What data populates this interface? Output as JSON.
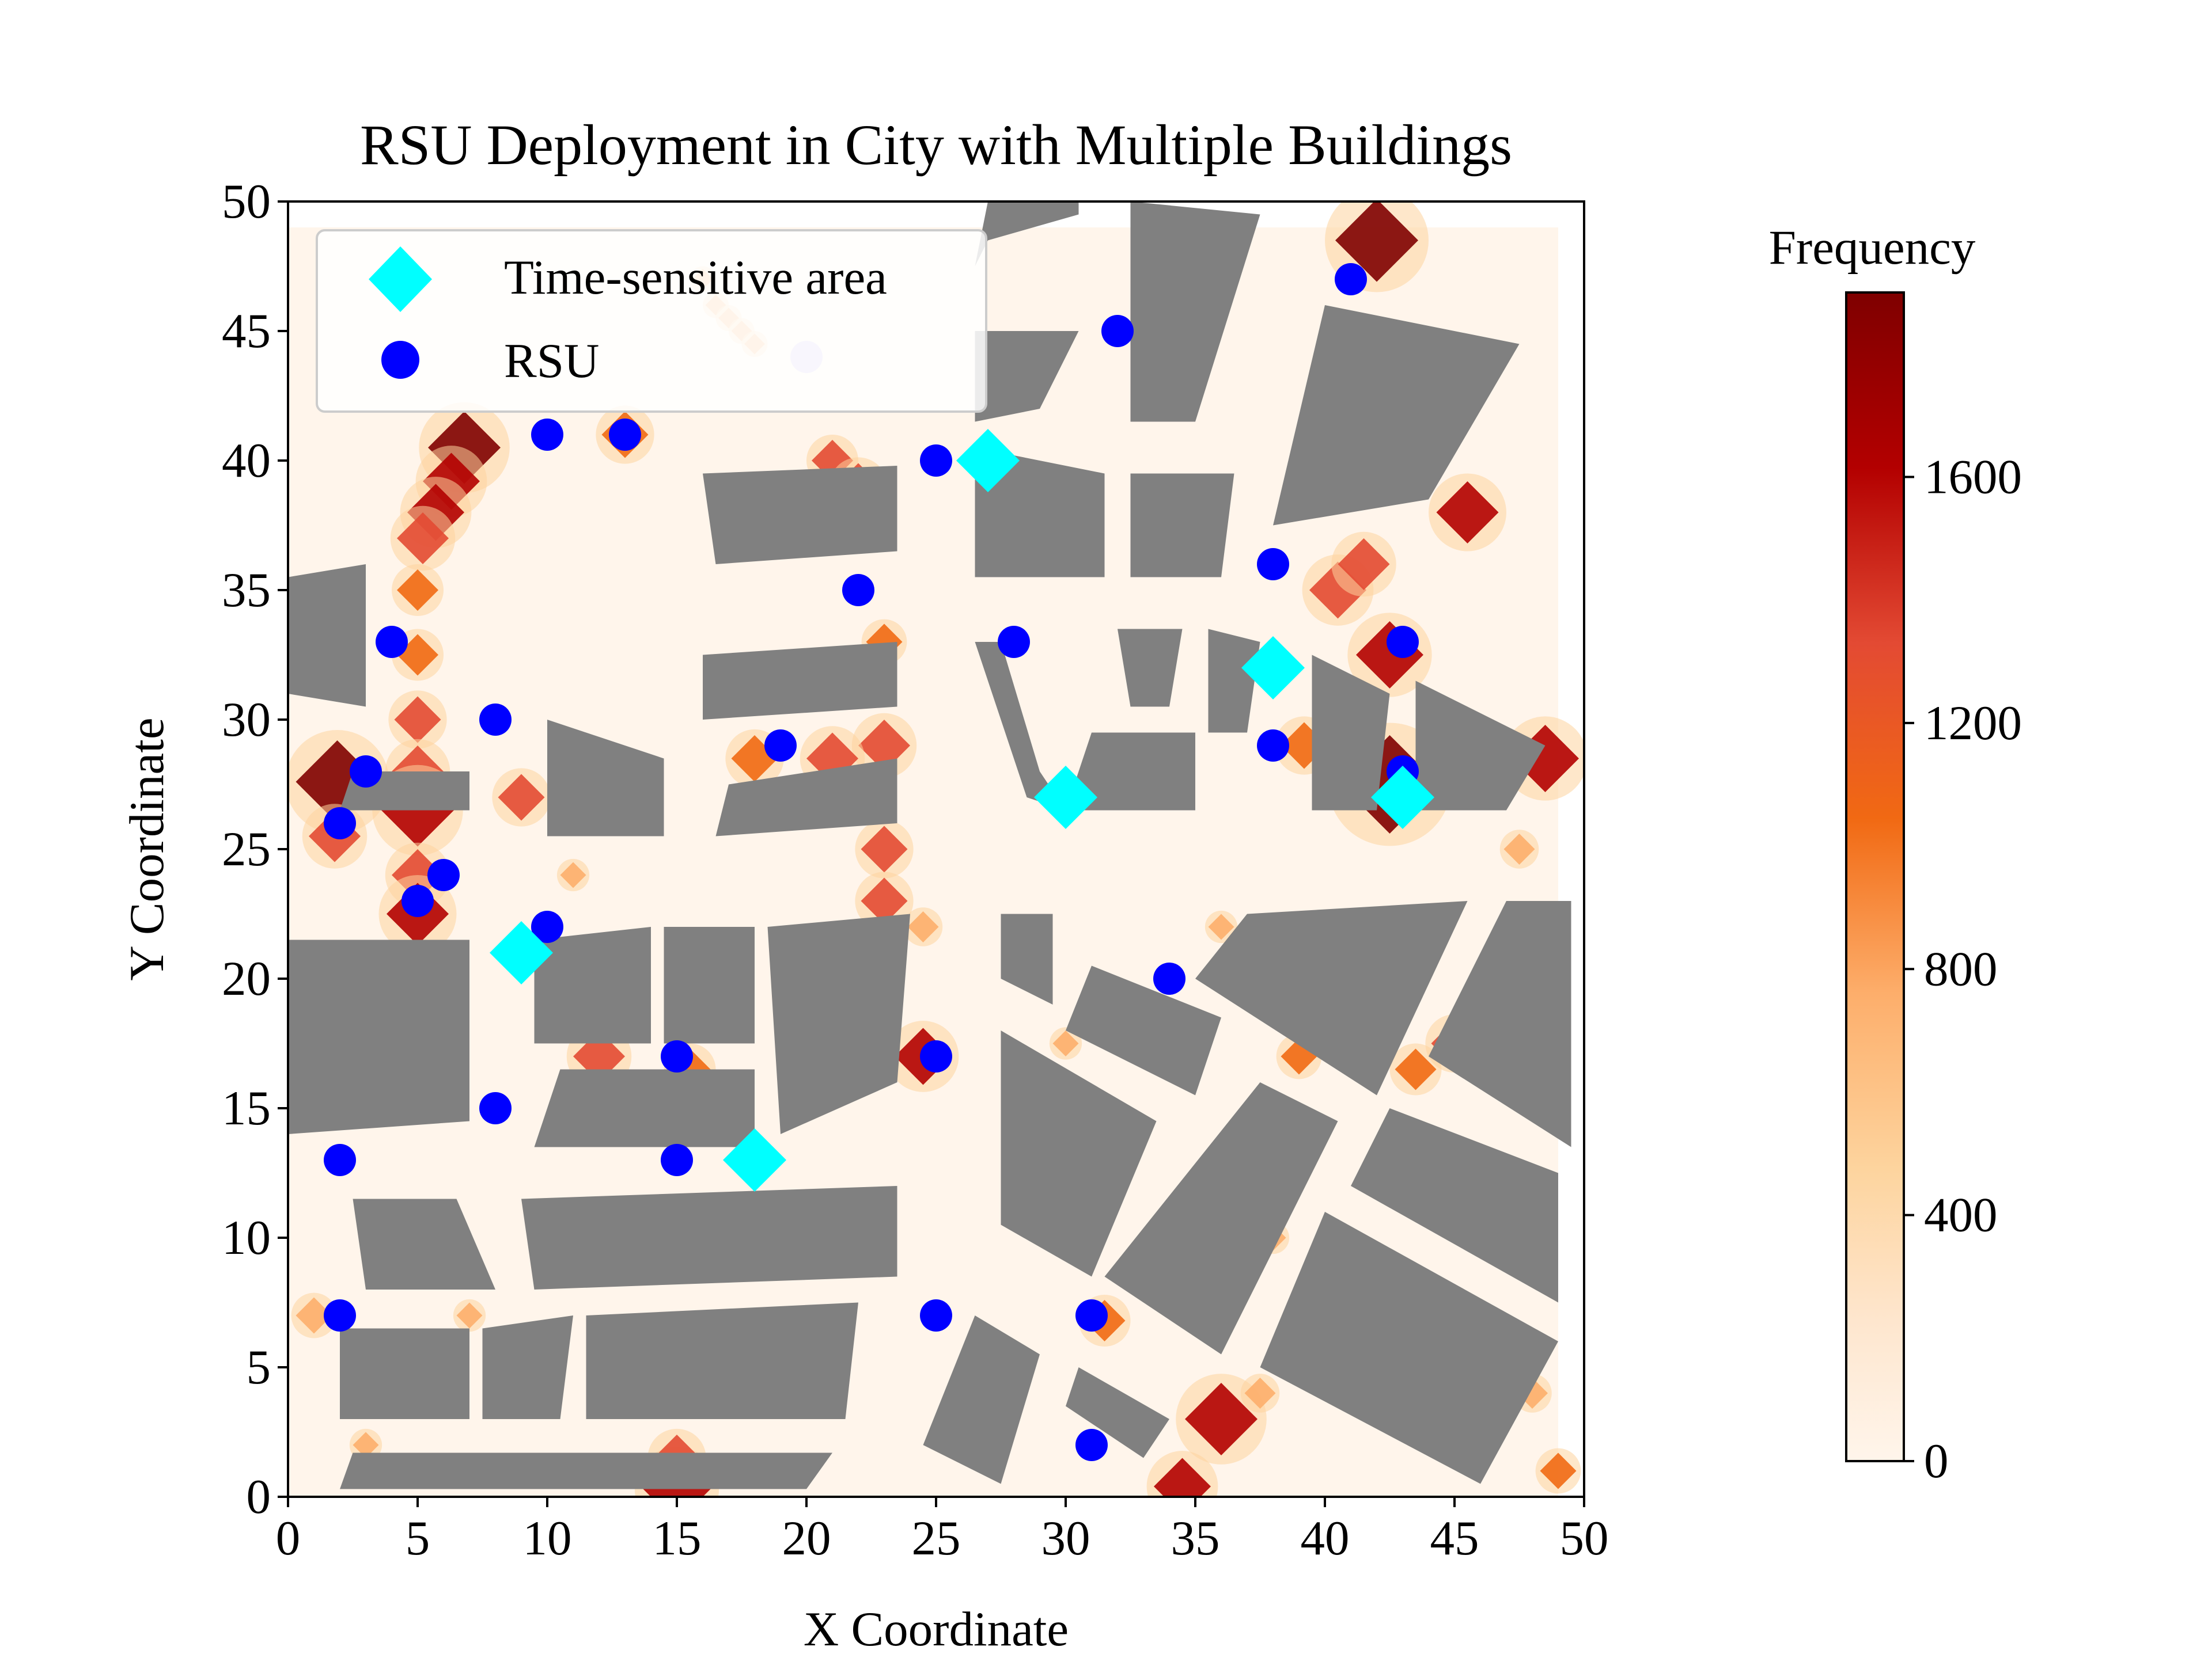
{
  "chart_data": {
    "type": "scatter",
    "title": "RSU Deployment in City with Multiple Buildings",
    "xlabel": "X Coordinate",
    "ylabel": "Y Coordinate",
    "xlim": [
      0,
      50
    ],
    "ylim": [
      0,
      50
    ],
    "xticks": [
      0,
      5,
      10,
      15,
      20,
      25,
      30,
      35,
      40,
      45,
      50
    ],
    "yticks": [
      0,
      5,
      10,
      15,
      20,
      25,
      30,
      35,
      40,
      45,
      50
    ],
    "grid": false,
    "legend_placement": "top-left",
    "colors": {
      "rsu": "#0000ff",
      "time_sensitive": "#00ffff",
      "building": "#808080",
      "heat_background": "#fff5eb",
      "heat_low": "#fdd49e",
      "heat_mid": "#f16913",
      "heat_high": "#b30000",
      "heat_max": "#7f0000"
    },
    "series": [
      {
        "name": "Time-sensitive area",
        "marker": "diamond",
        "points": [
          [
            27,
            40
          ],
          [
            38,
            32
          ],
          [
            30,
            27
          ],
          [
            43,
            27
          ],
          [
            9,
            21
          ],
          [
            18,
            13
          ]
        ]
      },
      {
        "name": "RSU",
        "marker": "circle",
        "points": [
          [
            41,
            47
          ],
          [
            32,
            45
          ],
          [
            20,
            44
          ],
          [
            10,
            41
          ],
          [
            13,
            41
          ],
          [
            25,
            40
          ],
          [
            38,
            36
          ],
          [
            22,
            35
          ],
          [
            4,
            33
          ],
          [
            28,
            33
          ],
          [
            43,
            33
          ],
          [
            8,
            30
          ],
          [
            19,
            29
          ],
          [
            38,
            29
          ],
          [
            3,
            28
          ],
          [
            43,
            28
          ],
          [
            2,
            26
          ],
          [
            6,
            24
          ],
          [
            5,
            23
          ],
          [
            10,
            22
          ],
          [
            34,
            20
          ],
          [
            15,
            17
          ],
          [
            25,
            17
          ],
          [
            8,
            15
          ],
          [
            2,
            13
          ],
          [
            15,
            13
          ],
          [
            2,
            7
          ],
          [
            25,
            7
          ],
          [
            31,
            7
          ],
          [
            31,
            2
          ]
        ]
      }
    ],
    "buildings": [
      [
        [
          27,
          48.5
        ],
        [
          30.5,
          49.5
        ],
        [
          30.5,
          50
        ],
        [
          27,
          50
        ],
        [
          26.5,
          47.5
        ]
      ],
      [
        [
          32.5,
          50
        ],
        [
          37.5,
          49.5
        ],
        [
          35,
          41.5
        ],
        [
          32.5,
          41.5
        ]
      ],
      [
        [
          40,
          46
        ],
        [
          47.5,
          44.5
        ],
        [
          44,
          38.5
        ],
        [
          38,
          37.5
        ]
      ],
      [
        [
          26.5,
          45
        ],
        [
          30.5,
          45
        ],
        [
          29,
          42
        ],
        [
          26.5,
          41.5
        ]
      ],
      [
        [
          16,
          39.5
        ],
        [
          23.5,
          39.8
        ],
        [
          23.5,
          36.5
        ],
        [
          16.5,
          36
        ]
      ],
      [
        [
          26.5,
          40.5
        ],
        [
          31.5,
          39.5
        ],
        [
          31.5,
          35.5
        ],
        [
          26.5,
          35.5
        ]
      ],
      [
        [
          32.5,
          39.5
        ],
        [
          36.5,
          39.5
        ],
        [
          36,
          35.5
        ],
        [
          32.5,
          35.5
        ]
      ],
      [
        [
          0,
          35.5
        ],
        [
          3,
          36
        ],
        [
          3,
          30.5
        ],
        [
          0,
          31
        ]
      ],
      [
        [
          16,
          32.5
        ],
        [
          23.5,
          33
        ],
        [
          23.5,
          30.5
        ],
        [
          16,
          30
        ]
      ],
      [
        [
          26.5,
          33
        ],
        [
          27.5,
          33
        ],
        [
          29,
          28
        ],
        [
          30,
          26.5
        ],
        [
          28.5,
          27
        ]
      ],
      [
        [
          32,
          33.5
        ],
        [
          34.5,
          33.5
        ],
        [
          34,
          30.5
        ],
        [
          32.5,
          30.5
        ]
      ],
      [
        [
          35.5,
          33.5
        ],
        [
          37.5,
          33
        ],
        [
          37,
          29.5
        ],
        [
          35.5,
          29.5
        ]
      ],
      [
        [
          39.5,
          32.5
        ],
        [
          42.5,
          31
        ],
        [
          42,
          26.5
        ],
        [
          39.5,
          26.5
        ]
      ],
      [
        [
          43.5,
          31.5
        ],
        [
          48.5,
          29
        ],
        [
          47,
          26.5
        ],
        [
          43.5,
          26.5
        ]
      ],
      [
        [
          31,
          29.5
        ],
        [
          35,
          29.5
        ],
        [
          35,
          26.5
        ],
        [
          30,
          26.5
        ]
      ],
      [
        [
          10,
          30
        ],
        [
          14.5,
          28.5
        ],
        [
          14.5,
          25.5
        ],
        [
          10,
          25.5
        ]
      ],
      [
        [
          17,
          27.5
        ],
        [
          23.5,
          28.5
        ],
        [
          23.5,
          26
        ],
        [
          16.5,
          25.5
        ]
      ],
      [
        [
          2.5,
          28
        ],
        [
          7,
          28
        ],
        [
          7,
          26.5
        ],
        [
          2,
          26.5
        ]
      ],
      [
        [
          0,
          21.5
        ],
        [
          7,
          21.5
        ],
        [
          7,
          14.5
        ],
        [
          0,
          14
        ]
      ],
      [
        [
          9.5,
          21.5
        ],
        [
          14,
          22
        ],
        [
          14,
          17.5
        ],
        [
          9.5,
          17.5
        ]
      ],
      [
        [
          14.5,
          22
        ],
        [
          18,
          22
        ],
        [
          18,
          17.5
        ],
        [
          14.5,
          17.5
        ]
      ],
      [
        [
          18.5,
          22
        ],
        [
          24,
          22.5
        ],
        [
          23.5,
          16
        ],
        [
          19,
          14
        ]
      ],
      [
        [
          27.5,
          22.5
        ],
        [
          29.5,
          22.5
        ],
        [
          29.5,
          19
        ],
        [
          27.5,
          20
        ]
      ],
      [
        [
          31,
          20.5
        ],
        [
          36,
          18.5
        ],
        [
          35,
          15.5
        ],
        [
          30,
          18
        ]
      ],
      [
        [
          37,
          22.5
        ],
        [
          45.5,
          23
        ],
        [
          42,
          15.5
        ],
        [
          35,
          20
        ]
      ],
      [
        [
          47,
          23
        ],
        [
          49.5,
          23
        ],
        [
          49.5,
          13.5
        ],
        [
          44,
          17
        ]
      ],
      [
        [
          10.5,
          16.5
        ],
        [
          18,
          16.5
        ],
        [
          18,
          13.5
        ],
        [
          9.5,
          13.5
        ]
      ],
      [
        [
          27.5,
          18
        ],
        [
          33.5,
          14.5
        ],
        [
          31,
          8.5
        ],
        [
          27.5,
          10.5
        ]
      ],
      [
        [
          37.5,
          16
        ],
        [
          40.5,
          14.5
        ],
        [
          36,
          5.5
        ],
        [
          31.5,
          8.5
        ]
      ],
      [
        [
          42.5,
          15
        ],
        [
          49,
          12.5
        ],
        [
          49,
          7.5
        ],
        [
          41,
          12
        ]
      ],
      [
        [
          2.5,
          11.5
        ],
        [
          6.5,
          11.5
        ],
        [
          8,
          8
        ],
        [
          3,
          8
        ]
      ],
      [
        [
          9,
          11.5
        ],
        [
          23.5,
          12
        ],
        [
          23.5,
          8.5
        ],
        [
          9.5,
          8
        ]
      ],
      [
        [
          40,
          11
        ],
        [
          49,
          6
        ],
        [
          46,
          0.5
        ],
        [
          37.5,
          5
        ]
      ],
      [
        [
          2,
          6.5
        ],
        [
          7,
          6.5
        ],
        [
          7,
          3
        ],
        [
          2,
          3
        ]
      ],
      [
        [
          7.5,
          6.5
        ],
        [
          11,
          7
        ],
        [
          10.5,
          3
        ],
        [
          7.5,
          3
        ]
      ],
      [
        [
          11.5,
          7
        ],
        [
          22,
          7.5
        ],
        [
          21.5,
          3
        ],
        [
          11.5,
          3
        ]
      ],
      [
        [
          26.5,
          7
        ],
        [
          29,
          5.5
        ],
        [
          27.5,
          0.5
        ],
        [
          24.5,
          2
        ]
      ],
      [
        [
          30.5,
          5
        ],
        [
          34,
          3
        ],
        [
          33,
          1.5
        ],
        [
          30,
          3.5
        ]
      ],
      [
        [
          2.5,
          1.7
        ],
        [
          21,
          1.7
        ],
        [
          20,
          0.3
        ],
        [
          2,
          0.3
        ]
      ]
    ],
    "hotspots": [
      [
        42,
        48.5,
        1.6,
        0.9
      ],
      [
        6.8,
        40.5,
        1.4,
        0.9
      ],
      [
        6.3,
        39.2,
        1.1,
        0.75
      ],
      [
        5.7,
        38,
        1.1,
        0.75
      ],
      [
        5.2,
        37,
        1,
        0.65
      ],
      [
        5,
        35,
        0.8,
        0.55
      ],
      [
        5,
        32.5,
        0.8,
        0.55
      ],
      [
        5,
        30,
        0.9,
        0.6
      ],
      [
        5,
        28,
        1,
        0.65
      ],
      [
        1.9,
        27.6,
        1.6,
        0.9
      ],
      [
        5,
        26.5,
        1.4,
        0.85
      ],
      [
        5,
        24,
        1,
        0.7
      ],
      [
        5,
        22.5,
        1.2,
        0.75
      ],
      [
        1.8,
        25.5,
        1,
        0.6
      ],
      [
        9,
        27,
        0.9,
        0.6
      ],
      [
        13,
        41,
        0.9,
        0.5
      ],
      [
        21,
        40,
        0.8,
        0.6
      ],
      [
        22,
        39,
        0.9,
        0.6
      ],
      [
        23,
        33,
        0.7,
        0.45
      ],
      [
        23,
        29,
        1,
        0.65
      ],
      [
        21,
        28.5,
        1,
        0.6
      ],
      [
        18,
        28.5,
        0.9,
        0.5
      ],
      [
        23,
        25,
        0.9,
        0.6
      ],
      [
        23,
        23,
        0.9,
        0.6
      ],
      [
        24.5,
        22,
        0.6,
        0.4
      ],
      [
        24.5,
        17,
        1.1,
        0.75
      ],
      [
        12,
        17,
        1,
        0.6
      ],
      [
        15.5,
        16.5,
        0.8,
        0.5
      ],
      [
        42.5,
        27.5,
        1.9,
        1
      ],
      [
        48.5,
        28.5,
        1.3,
        0.85
      ],
      [
        46,
        28.5,
        0.8,
        0.55
      ],
      [
        42.5,
        32.5,
        1.3,
        0.85
      ],
      [
        40.5,
        35,
        1.1,
        0.7
      ],
      [
        41.5,
        36,
        1,
        0.6
      ],
      [
        45.5,
        38,
        1.2,
        0.75
      ],
      [
        39.2,
        29,
        0.9,
        0.55
      ],
      [
        45,
        17.5,
        0.9,
        0.65
      ],
      [
        43.5,
        16.5,
        0.8,
        0.55
      ],
      [
        39,
        17,
        0.7,
        0.45
      ],
      [
        36,
        3,
        1.4,
        0.85
      ],
      [
        37.5,
        4,
        0.6,
        0.4
      ],
      [
        34.5,
        0.4,
        1.1,
        0.75
      ],
      [
        15,
        0.3,
        1.3,
        0.85
      ],
      [
        15,
        1.5,
        0.9,
        0.65
      ],
      [
        1,
        7,
        0.7,
        0.4
      ],
      [
        49,
        1,
        0.7,
        0.5
      ],
      [
        48,
        4,
        0.6,
        0.4
      ],
      [
        31.5,
        6.8,
        0.8,
        0.5
      ],
      [
        3,
        2,
        0.5,
        0.3
      ],
      [
        30,
        17.5,
        0.5,
        0.3
      ],
      [
        38,
        10,
        0.5,
        0.3
      ],
      [
        36,
        22,
        0.5,
        0.3
      ],
      [
        44,
        3,
        0.5,
        0.3
      ],
      [
        16.5,
        46,
        0.4,
        0.35
      ],
      [
        17,
        45.5,
        0.4,
        0.35
      ],
      [
        17.5,
        45,
        0.4,
        0.35
      ],
      [
        18,
        44.5,
        0.4,
        0.35
      ],
      [
        16,
        47,
        0.4,
        0.3
      ],
      [
        0.3,
        17.5,
        0.7,
        0.5
      ],
      [
        47.5,
        25,
        0.6,
        0.35
      ],
      [
        7,
        7,
        0.5,
        0.3
      ],
      [
        11,
        24,
        0.5,
        0.3
      ]
    ],
    "colorbar": {
      "label": "Frequency",
      "min": 0,
      "max": 1900,
      "ticks": [
        0,
        400,
        800,
        1200,
        1600
      ]
    }
  }
}
